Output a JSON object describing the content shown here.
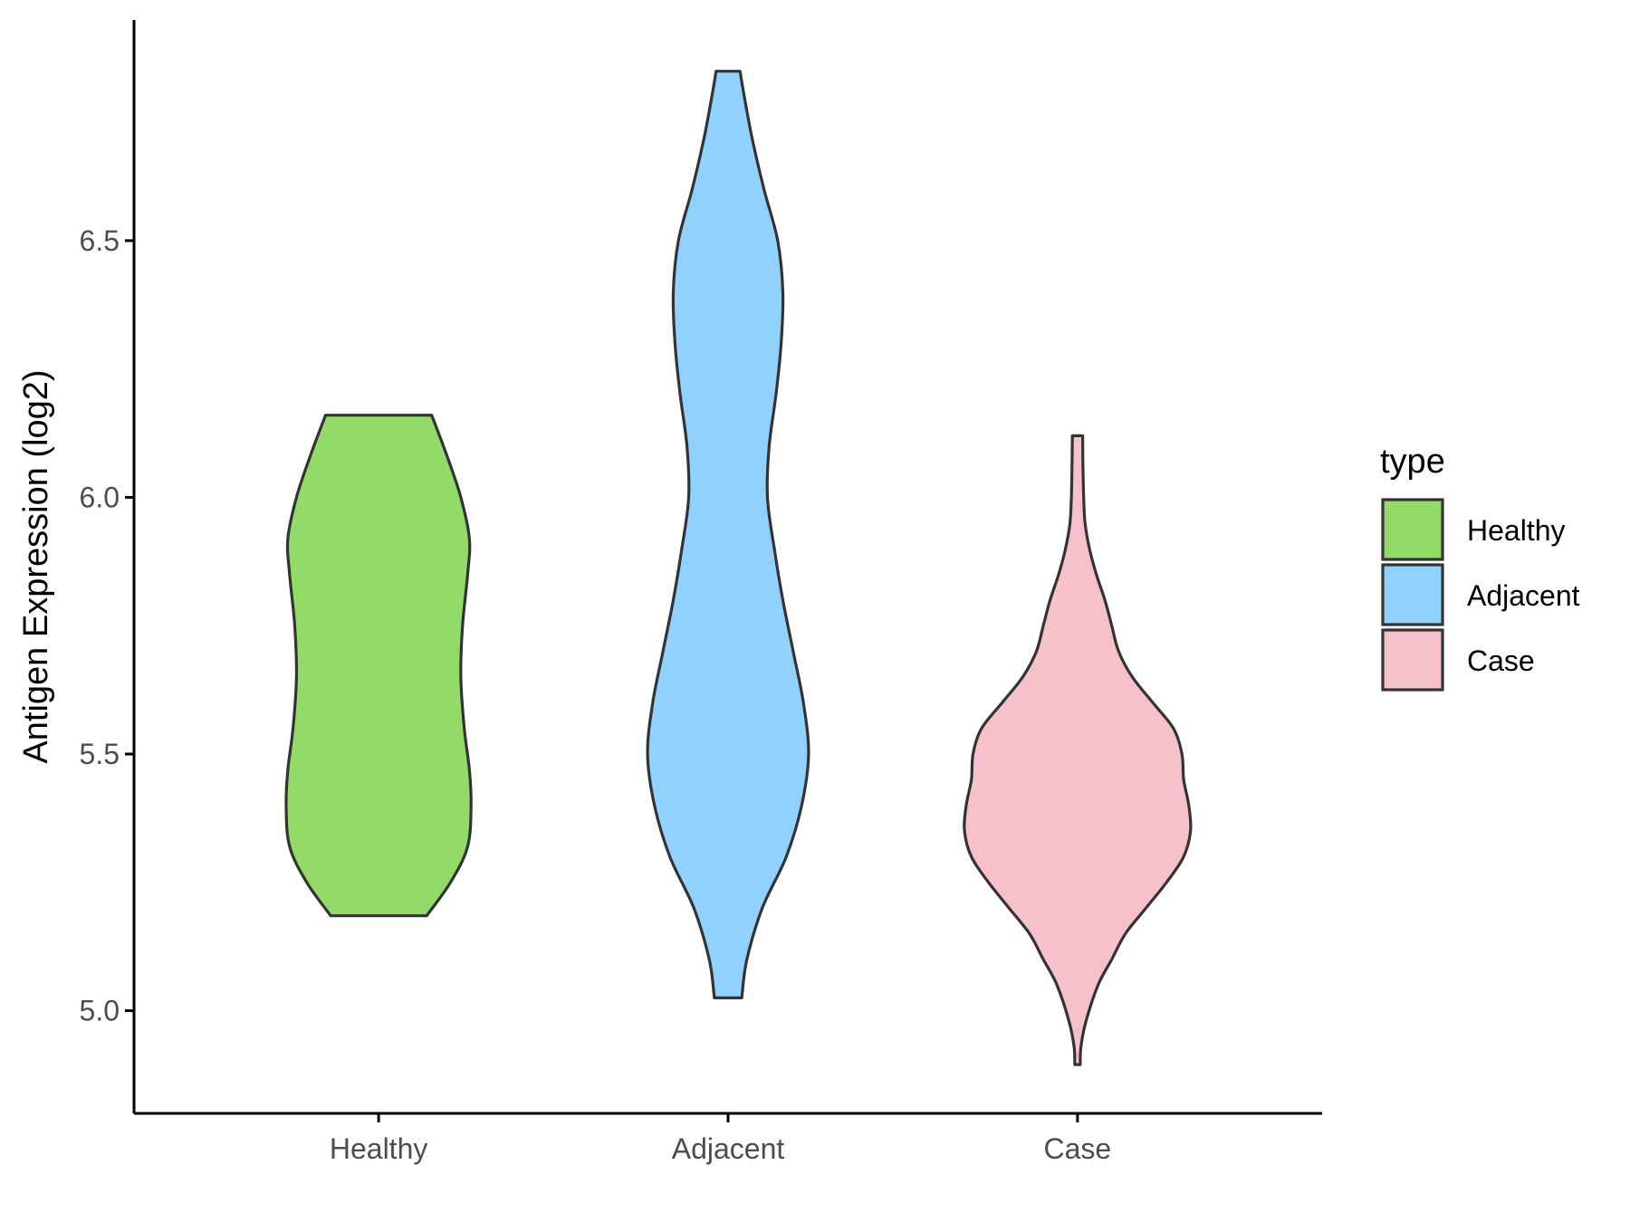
{
  "chart_data": {
    "type": "violin",
    "title": "",
    "xlabel": "",
    "ylabel": "Antigen Expression (log2)",
    "ylim": [
      4.8,
      6.93
    ],
    "yticks": [
      5.0,
      5.5,
      6.0,
      6.5
    ],
    "ytick_labels": [
      "5.0",
      "5.5",
      "6.0",
      "6.5"
    ],
    "categories": [
      "Healthy",
      "Adjacent",
      "Case"
    ],
    "legend": {
      "title": "type",
      "position": "right",
      "entries": [
        "Healthy",
        "Adjacent",
        "Case"
      ]
    },
    "grid": false,
    "series": [
      {
        "name": "Healthy",
        "color": "#93DB69",
        "min": 5.185,
        "max": 6.16,
        "profile": [
          [
            5.185,
            0.14
          ],
          [
            5.25,
            0.21
          ],
          [
            5.32,
            0.26
          ],
          [
            5.4,
            0.27
          ],
          [
            5.47,
            0.265
          ],
          [
            5.55,
            0.25
          ],
          [
            5.65,
            0.24
          ],
          [
            5.75,
            0.245
          ],
          [
            5.85,
            0.26
          ],
          [
            5.92,
            0.265
          ],
          [
            6.0,
            0.24
          ],
          [
            6.08,
            0.2
          ],
          [
            6.16,
            0.155
          ]
        ]
      },
      {
        "name": "Adjacent",
        "color": "#91D1FF",
        "min": 5.025,
        "max": 6.83,
        "profile": [
          [
            5.025,
            0.04
          ],
          [
            5.1,
            0.055
          ],
          [
            5.2,
            0.1
          ],
          [
            5.3,
            0.17
          ],
          [
            5.4,
            0.215
          ],
          [
            5.5,
            0.235
          ],
          [
            5.6,
            0.22
          ],
          [
            5.7,
            0.19
          ],
          [
            5.8,
            0.16
          ],
          [
            5.9,
            0.135
          ],
          [
            6.0,
            0.115
          ],
          [
            6.1,
            0.12
          ],
          [
            6.2,
            0.14
          ],
          [
            6.3,
            0.155
          ],
          [
            6.4,
            0.16
          ],
          [
            6.5,
            0.145
          ],
          [
            6.6,
            0.105
          ],
          [
            6.7,
            0.07
          ],
          [
            6.79,
            0.045
          ],
          [
            6.83,
            0.035
          ]
        ]
      },
      {
        "name": "Case",
        "color": "#F7C1CB",
        "min": 4.895,
        "max": 6.12,
        "profile": [
          [
            4.895,
            0.008
          ],
          [
            4.93,
            0.01
          ],
          [
            4.98,
            0.025
          ],
          [
            5.05,
            0.06
          ],
          [
            5.1,
            0.1
          ],
          [
            5.15,
            0.14
          ],
          [
            5.2,
            0.2
          ],
          [
            5.25,
            0.26
          ],
          [
            5.3,
            0.31
          ],
          [
            5.35,
            0.33
          ],
          [
            5.4,
            0.325
          ],
          [
            5.45,
            0.31
          ],
          [
            5.5,
            0.305
          ],
          [
            5.55,
            0.28
          ],
          [
            5.6,
            0.22
          ],
          [
            5.65,
            0.16
          ],
          [
            5.7,
            0.12
          ],
          [
            5.75,
            0.1
          ],
          [
            5.8,
            0.08
          ],
          [
            5.85,
            0.055
          ],
          [
            5.9,
            0.035
          ],
          [
            5.95,
            0.022
          ],
          [
            6.0,
            0.018
          ],
          [
            6.06,
            0.016
          ],
          [
            6.12,
            0.015
          ]
        ]
      }
    ]
  }
}
